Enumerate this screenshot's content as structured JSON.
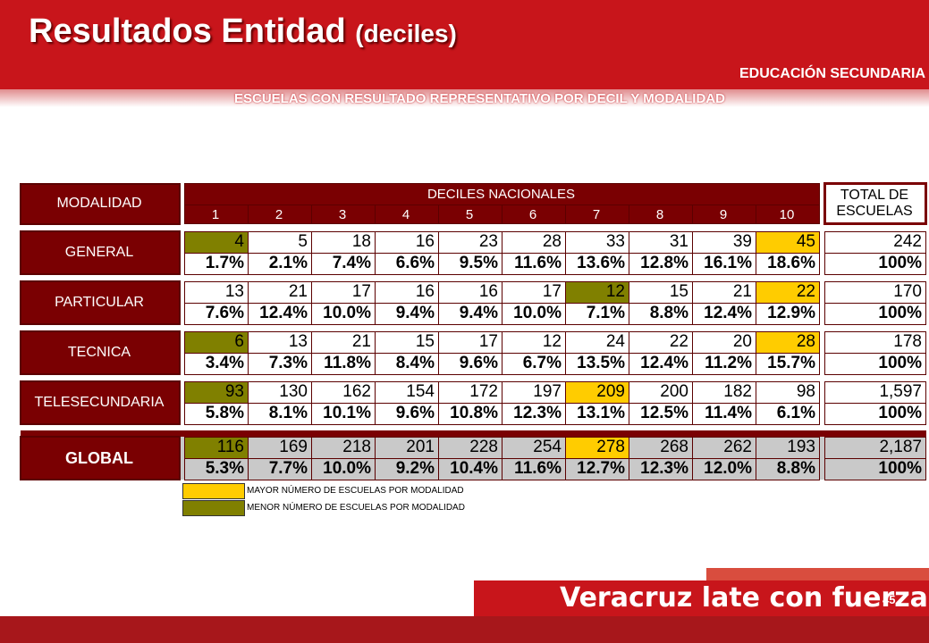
{
  "header": {
    "title_main": "Resultados Entidad",
    "title_sub": "(deciles)",
    "subtitle1": "EDUCACIÓN SECUNDARIA",
    "subtitle2": "ESCUELAS CON RESULTADO REPRESENTATIVO POR DECIL Y MODALIDAD"
  },
  "table": {
    "col_modalidad": "MODALIDAD",
    "col_deciles": "DECILES NACIONALES",
    "col_total_line1": "TOTAL DE",
    "col_total_line2": "ESCUELAS",
    "deciles": [
      "1",
      "2",
      "3",
      "4",
      "5",
      "6",
      "7",
      "8",
      "9",
      "10"
    ],
    "rows": [
      {
        "label": "GENERAL",
        "counts": [
          "4",
          "5",
          "18",
          "16",
          "23",
          "28",
          "33",
          "31",
          "39",
          "45"
        ],
        "total": "242",
        "pcts": [
          "1.7%",
          "2.1%",
          "7.4%",
          "6.6%",
          "9.5%",
          "11.6%",
          "13.6%",
          "12.8%",
          "16.1%",
          "18.6%"
        ],
        "total_pct": "100%"
      },
      {
        "label": "PARTICULAR",
        "counts": [
          "13",
          "21",
          "17",
          "16",
          "16",
          "17",
          "12",
          "15",
          "21",
          "22"
        ],
        "total": "170",
        "pcts": [
          "7.6%",
          "12.4%",
          "10.0%",
          "9.4%",
          "9.4%",
          "10.0%",
          "7.1%",
          "8.8%",
          "12.4%",
          "12.9%"
        ],
        "total_pct": "100%"
      },
      {
        "label": "TECNICA",
        "counts": [
          "6",
          "13",
          "21",
          "15",
          "17",
          "12",
          "24",
          "22",
          "20",
          "28"
        ],
        "total": "178",
        "pcts": [
          "3.4%",
          "7.3%",
          "11.8%",
          "8.4%",
          "9.6%",
          "6.7%",
          "13.5%",
          "12.4%",
          "11.2%",
          "15.7%"
        ],
        "total_pct": "100%"
      },
      {
        "label": "TELESECUNDARIA",
        "counts": [
          "93",
          "130",
          "162",
          "154",
          "172",
          "197",
          "209",
          "200",
          "182",
          "98"
        ],
        "total": "1,597",
        "pcts": [
          "5.8%",
          "8.1%",
          "10.1%",
          "9.6%",
          "10.8%",
          "12.3%",
          "13.1%",
          "12.5%",
          "11.4%",
          "6.1%"
        ],
        "total_pct": "100%"
      }
    ],
    "global": {
      "label": "GLOBAL",
      "counts": [
        "116",
        "169",
        "218",
        "201",
        "228",
        "254",
        "278",
        "268",
        "262",
        "193"
      ],
      "total": "2,187",
      "pcts": [
        "5.3%",
        "7.7%",
        "10.0%",
        "9.2%",
        "10.4%",
        "11.6%",
        "12.7%",
        "12.3%",
        "12.0%",
        "8.8%"
      ],
      "total_pct": "100%"
    }
  },
  "legend": {
    "max_label": "MAYOR NÚMERO DE ESCUELAS POR MODALIDAD",
    "min_label": "MENOR NÚMERO DE ESCUELAS POR MODALIDAD",
    "max_color": "#ffcc00",
    "min_color": "#808000"
  },
  "footer": {
    "slogan": "Veracruz late con fuerza",
    "page_number": "45"
  }
}
